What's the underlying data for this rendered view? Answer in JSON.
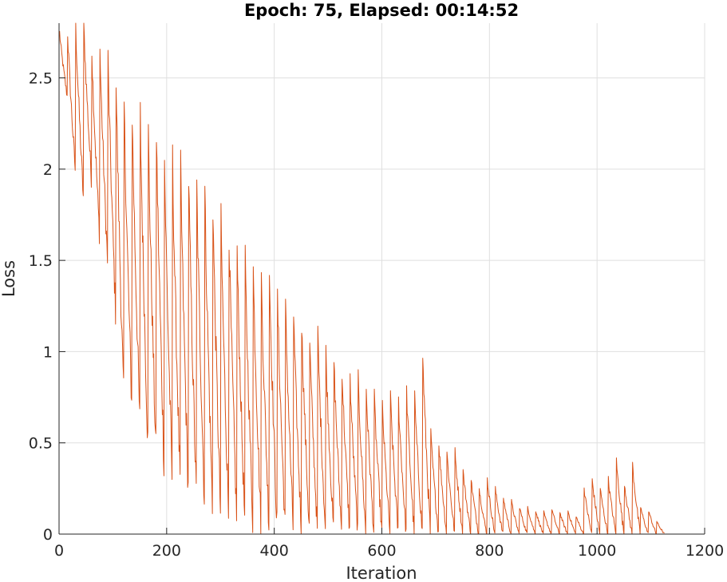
{
  "chart_data": {
    "type": "line",
    "title": "Epoch: 75, Elapsed: 00:14:52",
    "xlabel": "Iteration",
    "ylabel": "Loss",
    "xlim": [
      0,
      1200
    ],
    "ylim": [
      0,
      2.8
    ],
    "xticks": [
      0,
      200,
      400,
      600,
      800,
      1000,
      1200
    ],
    "yticks": [
      0,
      0.5,
      1,
      1.5,
      2,
      2.5
    ],
    "ytick_labels": [
      "0",
      "0.5",
      "1",
      "1.5",
      "2",
      "2.5"
    ],
    "grid": true,
    "series": [
      {
        "color": "#d95319",
        "epochs": 75,
        "iterations_per_epoch": 15,
        "final_iteration": 1125,
        "epoch_peaks": [
          2.75,
          2.75,
          2.8,
          2.8,
          2.65,
          2.65,
          2.6,
          2.5,
          2.35,
          2.3,
          2.3,
          2.2,
          2.2,
          2.05,
          2.05,
          2.0,
          1.95,
          1.9,
          1.88,
          1.8,
          1.72,
          1.65,
          1.55,
          1.5,
          1.45,
          1.4,
          1.45,
          1.3,
          1.25,
          1.2,
          1.15,
          1.05,
          1.1,
          1.0,
          0.95,
          0.9,
          0.85,
          0.85,
          0.8,
          0.75,
          0.7,
          0.75,
          0.73,
          0.78,
          0.75,
          0.98,
          0.55,
          0.5,
          0.45,
          0.45,
          0.35,
          0.3,
          0.25,
          0.3,
          0.25,
          0.2,
          0.18,
          0.15,
          0.15,
          0.13,
          0.12,
          0.14,
          0.12,
          0.13,
          0.1,
          0.25,
          0.3,
          0.25,
          0.3,
          0.4,
          0.28,
          0.38,
          0.15,
          0.13,
          0.07
        ],
        "epoch_troughs": [
          2.4,
          2.0,
          1.85,
          1.95,
          1.65,
          1.5,
          1.22,
          0.75,
          0.72,
          0.62,
          0.5,
          0.45,
          0.4,
          0.32,
          0.28,
          0.25,
          0.22,
          0.2,
          0.15,
          0.12,
          0.12,
          0.1,
          0.08,
          0.08,
          0.07,
          0.06,
          0.05,
          0.05,
          0.04,
          0.04,
          0.03,
          0.03,
          0.02,
          0.02,
          0.02,
          0.02,
          0.02,
          0.01,
          0.01,
          0.01,
          0.01,
          0.01,
          0.01,
          0.01,
          0.01,
          0.01,
          0.01,
          0.01,
          0.01,
          0.01,
          0.01,
          0.0,
          0.0,
          0.0,
          0.0,
          0.0,
          0.0,
          0.0,
          0.0,
          0.0,
          0.0,
          0.0,
          0.0,
          0.0,
          0.0,
          0.0,
          0.0,
          0.0,
          0.0,
          0.0,
          0.0,
          0.0,
          0.0,
          0.0,
          0.0
        ]
      }
    ]
  }
}
